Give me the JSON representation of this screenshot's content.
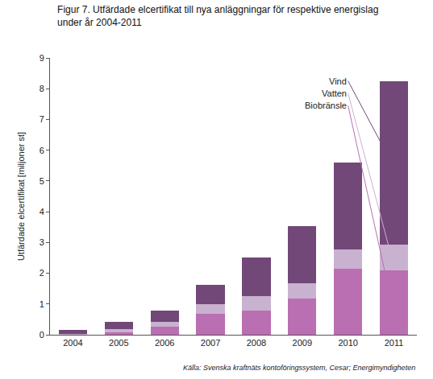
{
  "chart_data": {
    "type": "bar",
    "title": [
      "Figur 7. Utfärdade elcertifikat till nya anläggningar för respektive energislag",
      "under år 2004-2011"
    ],
    "y_label": "Utfärdade elcertifikat [miljoner st]",
    "source": "Källa: Svenska kraftnäts kontoföringssystem, Cesar; Energimyndigheten",
    "categories": [
      "2004",
      "2005",
      "2006",
      "2007",
      "2008",
      "2009",
      "2010",
      "2011"
    ],
    "stacked": true,
    "grid": false,
    "series": [
      {
        "name": "Biobränsle",
        "color": "#b96fb1",
        "values": [
          0.01,
          0.07,
          0.27,
          0.68,
          0.78,
          1.17,
          2.15,
          2.1
        ]
      },
      {
        "name": "Vatten",
        "color": "#c9b2cf",
        "values": [
          0.01,
          0.12,
          0.16,
          0.32,
          0.47,
          0.5,
          0.63,
          0.83
        ]
      },
      {
        "name": "Vind",
        "color": "#714878",
        "values": [
          0.13,
          0.23,
          0.35,
          0.62,
          1.27,
          1.85,
          2.82,
          5.32
        ]
      }
    ],
    "ylim": [
      0,
      9
    ],
    "yticks": [
      0,
      1,
      2,
      3,
      4,
      5,
      6,
      7,
      8,
      9
    ]
  }
}
